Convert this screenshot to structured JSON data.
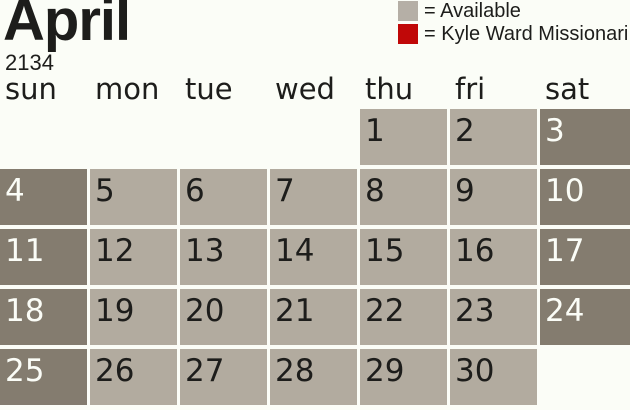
{
  "header": {
    "month": "April",
    "year": "2134"
  },
  "legend": {
    "items": [
      {
        "name": "available",
        "label": "= Available"
      },
      {
        "name": "kyle-ward-missionaries",
        "label": "= Kyle Ward Missionari"
      }
    ]
  },
  "calendar": {
    "day_headers": [
      "sun",
      "mon",
      "tue",
      "wed",
      "thu",
      "fri",
      "sat"
    ],
    "weeks": [
      [
        "",
        "",
        "",
        "",
        "1",
        "2",
        "3"
      ],
      [
        "4",
        "5",
        "6",
        "7",
        "8",
        "9",
        "10"
      ],
      [
        "11",
        "12",
        "13",
        "14",
        "15",
        "16",
        "17"
      ],
      [
        "18",
        "19",
        "20",
        "21",
        "22",
        "23",
        "24"
      ],
      [
        "25",
        "26",
        "27",
        "28",
        "29",
        "30",
        ""
      ]
    ]
  },
  "colors": {
    "background": "#fbfdf7",
    "text": "#1d1d1b",
    "weekday_cell": "#b2ab9f",
    "weekend_cell": "#847c6f",
    "day_number_dark": "#1d1d1b",
    "day_number_light": "#fbfdf7",
    "available_swatch": "#b5afa6",
    "missionary_swatch": "#c00808"
  }
}
